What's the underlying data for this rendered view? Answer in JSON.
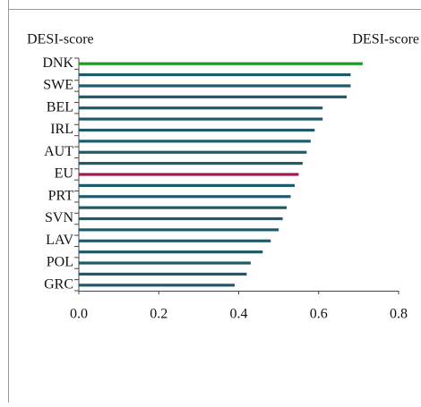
{
  "chart_data": {
    "type": "bar",
    "orientation": "horizontal",
    "y_label": "DESI-score",
    "categories": [
      "DNK",
      null,
      "SWE",
      null,
      "BEL",
      null,
      "IRL",
      null,
      "AUT",
      null,
      "EU",
      null,
      "PRT",
      null,
      "SVN",
      null,
      "LAV",
      null,
      "POL",
      null,
      "GRC"
    ],
    "series": [
      {
        "name": "DESI-score",
        "color": "#1f5a6b",
        "values": [
          0.71,
          0.68,
          0.68,
          0.67,
          0.61,
          0.61,
          0.59,
          0.58,
          0.57,
          0.56,
          0.55,
          0.54,
          0.53,
          0.52,
          0.51,
          0.5,
          0.48,
          0.46,
          0.43,
          0.42,
          0.39
        ],
        "colors": [
          "#1e9a1e",
          "#1f5a6b",
          "#1f5a6b",
          "#1f5a6b",
          "#1f5a6b",
          "#1f5a6b",
          "#1f5a6b",
          "#1f5a6b",
          "#1f5a6b",
          "#1f5a6b",
          "#a3174e",
          "#1f5a6b",
          "#1f5a6b",
          "#1f5a6b",
          "#1f5a6b",
          "#1f5a6b",
          "#1f5a6b",
          "#1f5a6b",
          "#1f5a6b",
          "#1f5a6b",
          "#1f5a6b"
        ]
      }
    ],
    "xlim": [
      0,
      0.8
    ],
    "xticks": [
      {
        "value": 0,
        "label": "0.0"
      },
      0.2,
      0.4,
      0.6,
      0.8
    ]
  }
}
